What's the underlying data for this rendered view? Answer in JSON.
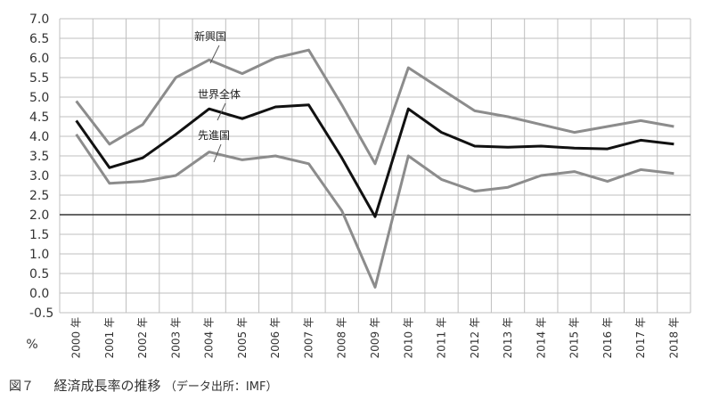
{
  "chart_data": {
    "type": "line",
    "title": "",
    "xlabel": "",
    "ylabel": "%",
    "ylim": [
      -0.5,
      7.0
    ],
    "yticks": [
      "7.0",
      "6.5",
      "6.0",
      "5.5",
      "5.0",
      "4.5",
      "4.0",
      "3.5",
      "3.0",
      "2.5",
      "2.0",
      "1.5",
      "1.0",
      "0.5",
      "0.0",
      "-0.5"
    ],
    "categories": [
      "2000 年",
      "2001 年",
      "2002 年",
      "2003 年",
      "2004 年",
      "2005 年",
      "2006 年",
      "2007 年",
      "2008 年",
      "2009 年",
      "2010 年",
      "2011 年",
      "2012 年",
      "2013 年",
      "2014 年",
      "2015 年",
      "2016 年",
      "2017 年",
      "2018 年"
    ],
    "reference_line": 2.0,
    "grid": true,
    "series": [
      {
        "name": "新興国",
        "color": "#8c8c8c",
        "values": [
          4.9,
          3.8,
          4.3,
          5.5,
          5.95,
          5.6,
          6.0,
          6.2,
          4.8,
          3.3,
          5.75,
          5.2,
          4.65,
          4.5,
          4.3,
          4.1,
          4.25,
          4.4,
          4.25
        ]
      },
      {
        "name": "世界全体",
        "color": "#111111",
        "values": [
          4.4,
          3.2,
          3.45,
          4.05,
          4.7,
          4.45,
          4.75,
          4.8,
          3.45,
          1.95,
          4.7,
          4.1,
          3.75,
          3.72,
          3.75,
          3.7,
          3.68,
          3.9,
          3.8
        ]
      },
      {
        "name": "先進国",
        "color": "#8c8c8c",
        "values": [
          4.05,
          2.8,
          2.85,
          3.0,
          3.6,
          3.4,
          3.5,
          3.3,
          2.1,
          0.15,
          3.5,
          2.9,
          2.6,
          2.7,
          3.0,
          3.1,
          2.85,
          3.15,
          3.05
        ]
      }
    ]
  },
  "caption": {
    "figure": "図７",
    "title": "経済成長率の推移",
    "source": "（データ出所：IMF）"
  }
}
